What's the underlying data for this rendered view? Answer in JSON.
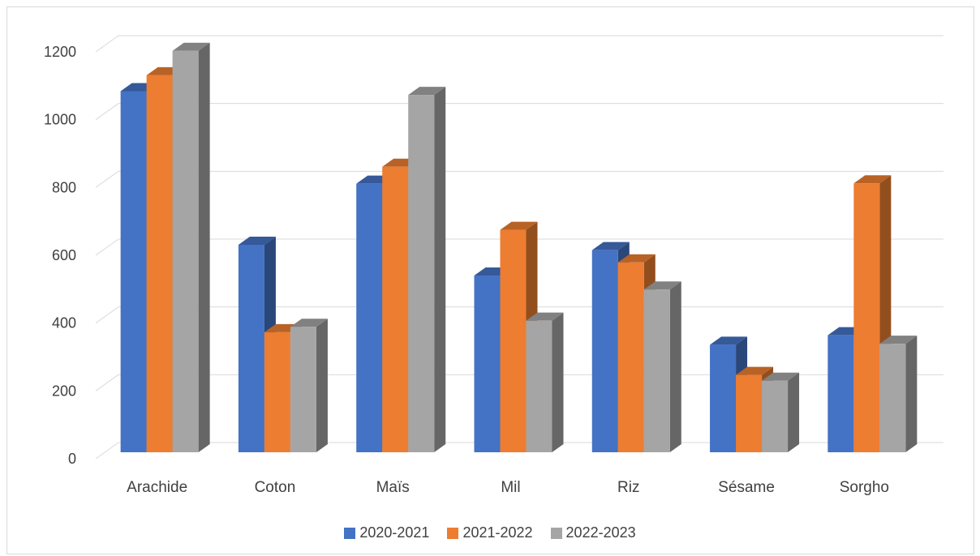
{
  "chart_data": {
    "type": "bar",
    "title": "",
    "xlabel": "",
    "ylabel": "",
    "ylim": [
      0,
      1200
    ],
    "yticks": [
      0,
      200,
      400,
      600,
      800,
      1000,
      1200
    ],
    "grid": true,
    "legend_position": "bottom",
    "categories": [
      "Arachide",
      "Coton",
      "Maïs",
      "Mil",
      "Riz",
      "Sésame",
      "Sorgho"
    ],
    "series": [
      {
        "name": "2020-2021",
        "color": "#4472C4",
        "values": [
          1065,
          612,
          792,
          521,
          596,
          317,
          345
        ]
      },
      {
        "name": "2021-2022",
        "color": "#ED7D31",
        "values": [
          1112,
          354,
          842,
          656,
          560,
          228,
          793
        ]
      },
      {
        "name": "2022-2023",
        "color": "#A5A5A5",
        "values": [
          1184,
          370,
          1054,
          388,
          480,
          211,
          320
        ]
      }
    ]
  }
}
